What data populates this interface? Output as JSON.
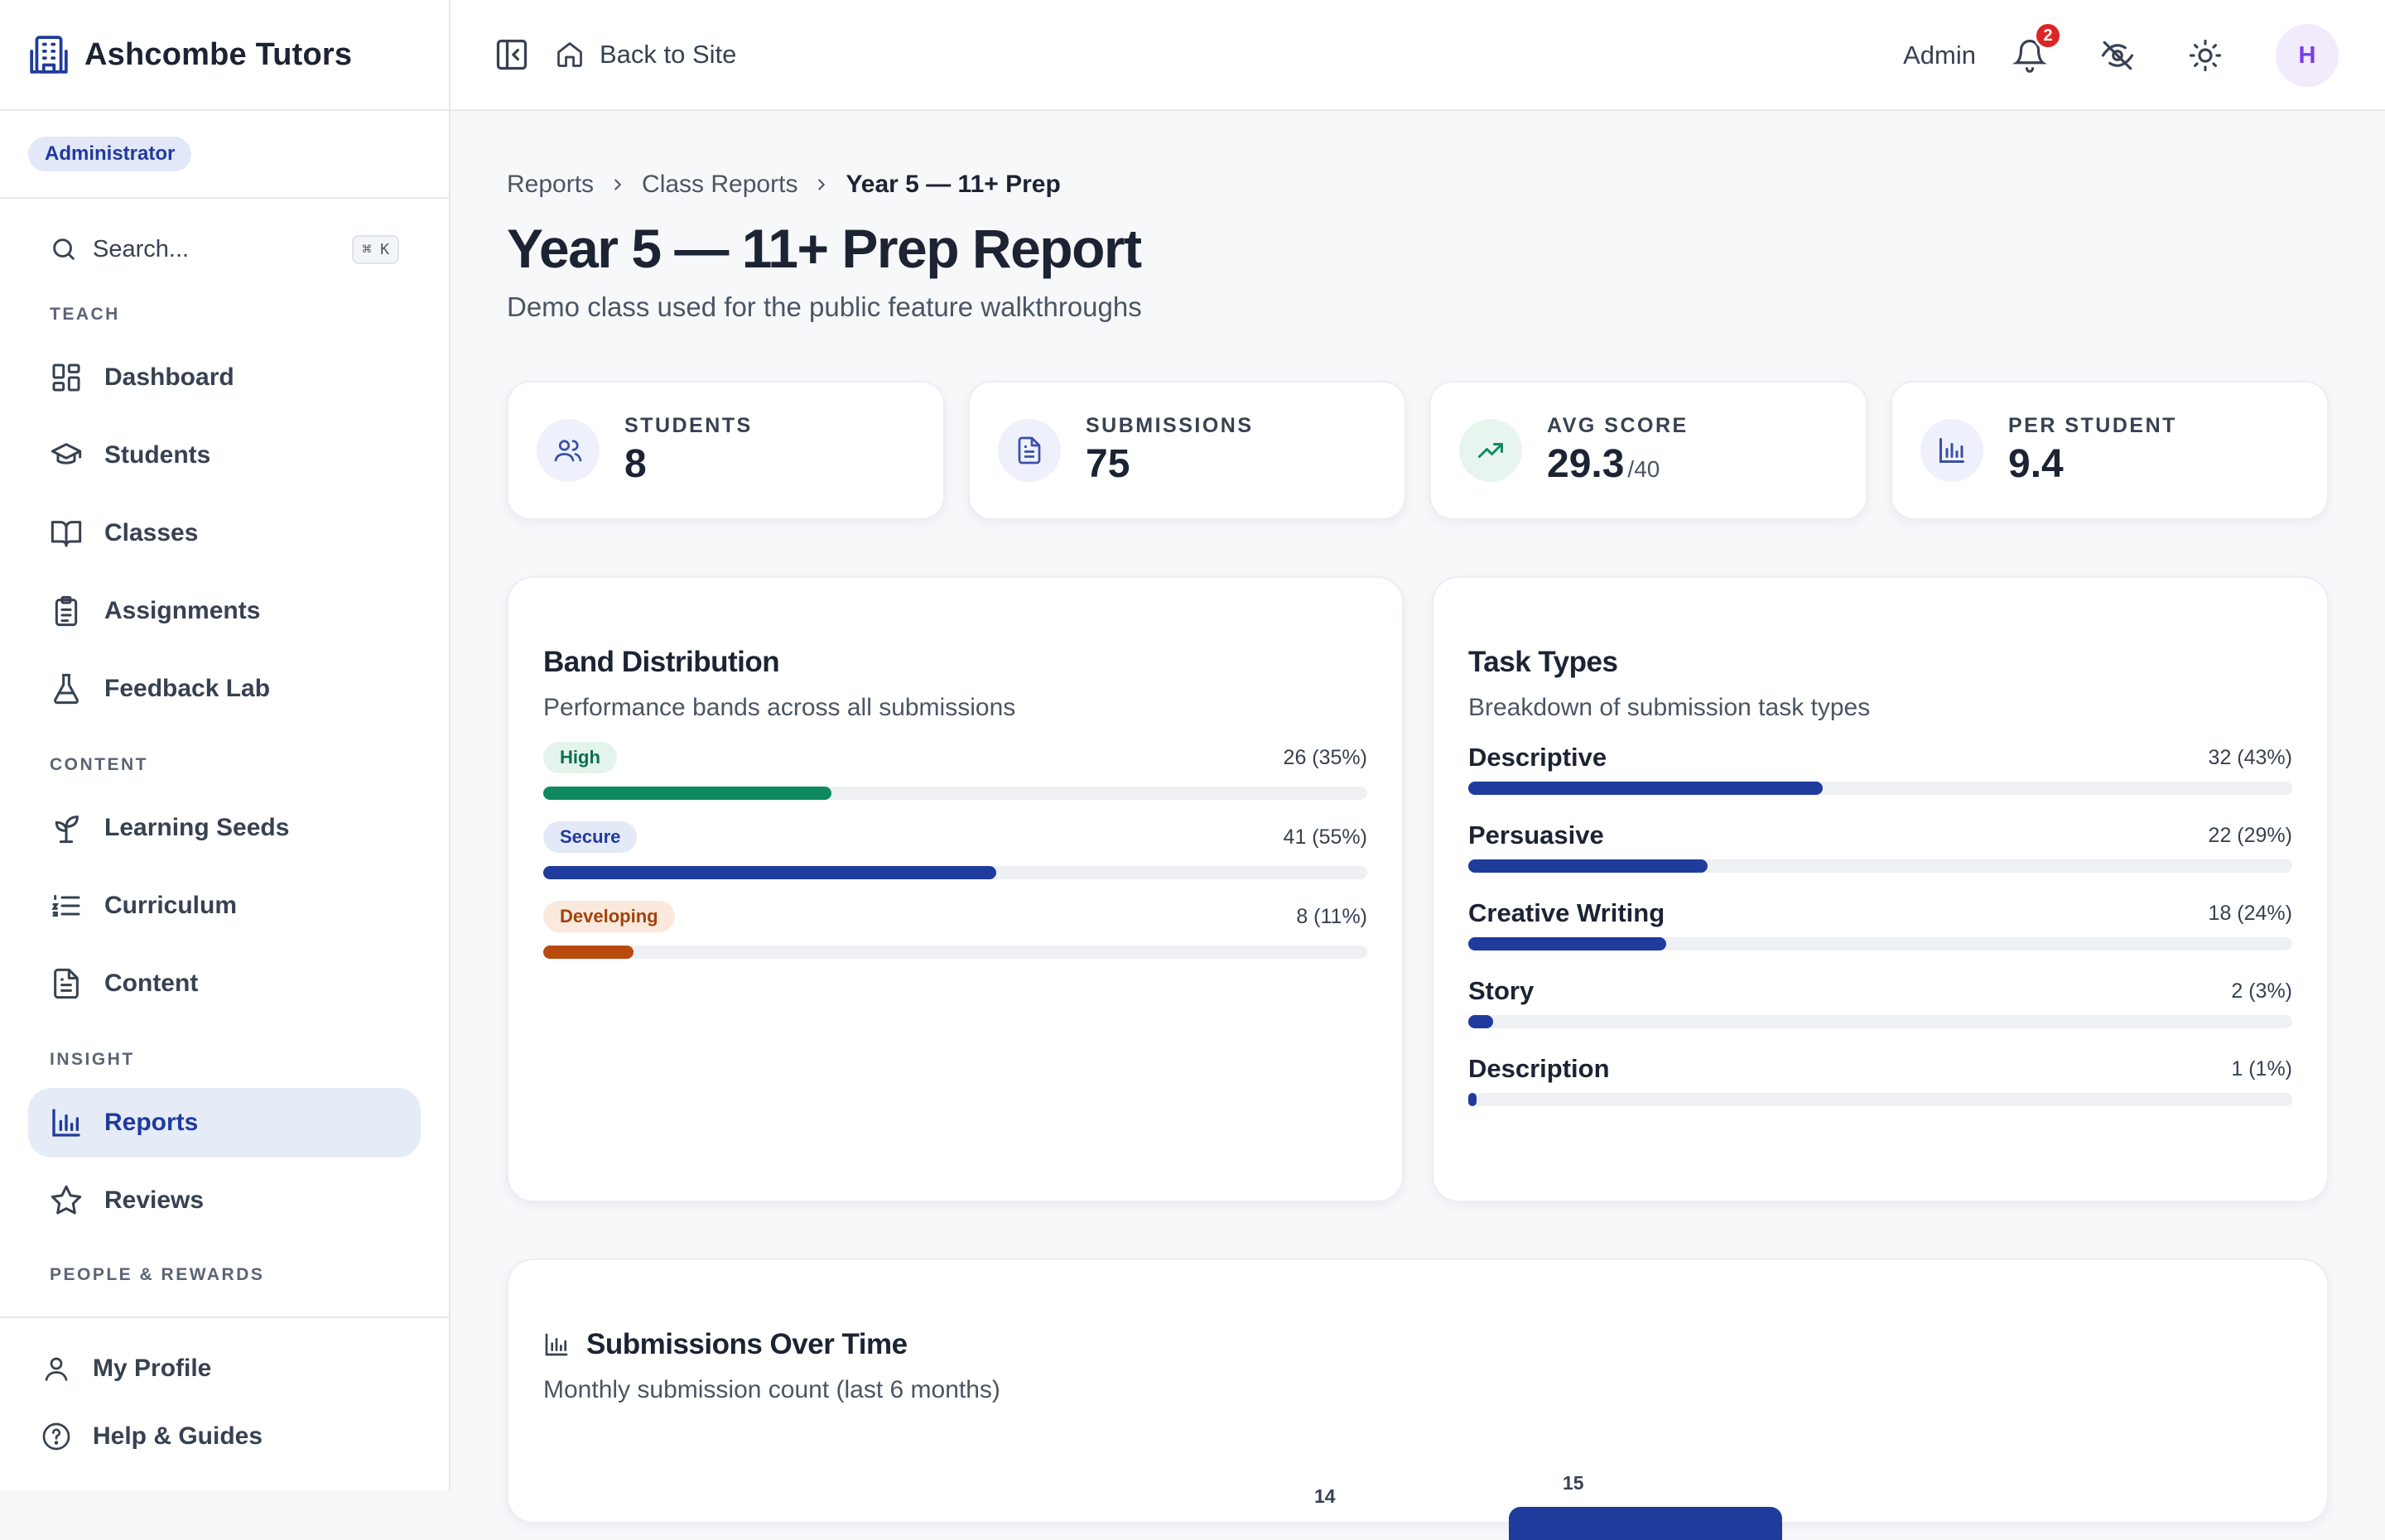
{
  "brand": {
    "name": "Ashcombe Tutors"
  },
  "role": "Administrator",
  "search": {
    "placeholder": "Search...",
    "shortcut": "⌘ K"
  },
  "sidebar": {
    "sections": [
      {
        "label": "TEACH",
        "items": [
          {
            "label": "Dashboard",
            "icon": "dashboard-icon"
          },
          {
            "label": "Students",
            "icon": "graduation-cap-icon"
          },
          {
            "label": "Classes",
            "icon": "book-icon"
          },
          {
            "label": "Assignments",
            "icon": "clipboard-icon"
          },
          {
            "label": "Feedback Lab",
            "icon": "flask-icon"
          }
        ]
      },
      {
        "label": "CONTENT",
        "items": [
          {
            "label": "Learning Seeds",
            "icon": "sprout-icon"
          },
          {
            "label": "Curriculum",
            "icon": "list-icon"
          },
          {
            "label": "Content",
            "icon": "document-icon"
          }
        ]
      },
      {
        "label": "INSIGHT",
        "items": [
          {
            "label": "Reports",
            "icon": "bar-chart-icon",
            "active": true
          },
          {
            "label": "Reviews",
            "icon": "star-icon"
          }
        ]
      },
      {
        "label": "PEOPLE & REWARDS",
        "items": []
      }
    ],
    "footer": [
      {
        "label": "My Profile",
        "icon": "user-icon"
      },
      {
        "label": "Help & Guides",
        "icon": "help-circle-icon"
      }
    ]
  },
  "topbar": {
    "back_label": "Back to Site",
    "admin_label": "Admin",
    "notification_count": "2",
    "avatar_initial": "H"
  },
  "breadcrumb": {
    "items": [
      "Reports",
      "Class Reports"
    ],
    "current": "Year 5 — 11+ Prep"
  },
  "page": {
    "title": "Year 5 — 11+ Prep Report",
    "subtitle": "Demo class used for the public feature walkthroughs"
  },
  "stats": [
    {
      "label": "STUDENTS",
      "value": "8",
      "unit": "",
      "icon": "users-icon",
      "color": "#3b4fa8",
      "bg": "#eef1fb"
    },
    {
      "label": "SUBMISSIONS",
      "value": "75",
      "unit": "",
      "icon": "file-text-icon",
      "color": "#3b4fa8",
      "bg": "#eef1fb"
    },
    {
      "label": "AVG SCORE",
      "value": "29.3",
      "unit": "/40",
      "icon": "trending-up-icon",
      "color": "#0f8a5f",
      "bg": "#e8f5ef"
    },
    {
      "label": "PER STUDENT",
      "value": "9.4",
      "unit": "",
      "icon": "bar-chart-icon",
      "color": "#3b4fa8",
      "bg": "#eef1fb"
    }
  ],
  "band_distribution": {
    "title": "Band Distribution",
    "subtitle": "Performance bands across all submissions",
    "bands": [
      {
        "label": "High",
        "count": "26 (35%)",
        "fraction": 0.35,
        "color": "#0f8a5f",
        "pill_bg": "#e3f4ec",
        "pill_fg": "#0f6e4b"
      },
      {
        "label": "Secure",
        "count": "41 (55%)",
        "fraction": 0.55,
        "color": "#1f3b9c",
        "pill_bg": "#e4e9f8",
        "pill_fg": "#1f3b9c"
      },
      {
        "label": "Developing",
        "count": "8 (11%)",
        "fraction": 0.11,
        "color": "#b84a0e",
        "pill_bg": "#fbe9dd",
        "pill_fg": "#a3420b"
      }
    ]
  },
  "task_types": {
    "title": "Task Types",
    "subtitle": "Breakdown of submission task types",
    "items": [
      {
        "label": "Descriptive",
        "count": "32 (43%)",
        "fraction": 0.43
      },
      {
        "label": "Persuasive",
        "count": "22 (29%)",
        "fraction": 0.29
      },
      {
        "label": "Creative Writing",
        "count": "18 (24%)",
        "fraction": 0.24
      },
      {
        "label": "Story",
        "count": "2 (3%)",
        "fraction": 0.03
      },
      {
        "label": "Description",
        "count": "1 (1%)",
        "fraction": 0.01
      }
    ],
    "color": "#1f3b9c"
  },
  "submissions_over_time": {
    "title": "Submissions Over Time",
    "subtitle": "Monthly submission count (last 6 months)",
    "chart_data": {
      "type": "bar",
      "values": [
        14,
        15
      ],
      "ymax": 15
    }
  }
}
